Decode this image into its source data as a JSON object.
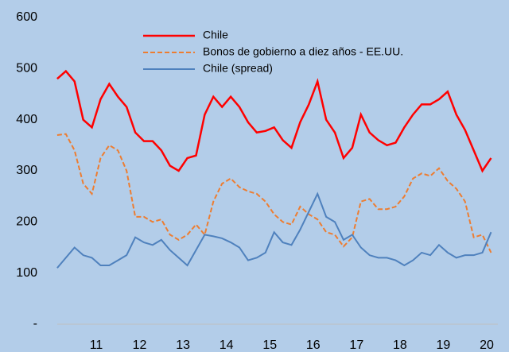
{
  "chart_data": {
    "type": "line",
    "x": [
      10.1,
      10.3,
      10.5,
      10.7,
      10.9,
      11.1,
      11.3,
      11.5,
      11.7,
      11.9,
      12.1,
      12.3,
      12.5,
      12.7,
      12.9,
      13.1,
      13.3,
      13.5,
      13.7,
      13.9,
      14.1,
      14.3,
      14.5,
      14.7,
      14.9,
      15.1,
      15.3,
      15.5,
      15.7,
      15.9,
      16.1,
      16.3,
      16.5,
      16.7,
      16.9,
      17.1,
      17.3,
      17.5,
      17.7,
      17.9,
      18.1,
      18.3,
      18.5,
      18.7,
      18.9,
      19.1,
      19.3,
      19.5,
      19.7,
      19.9,
      20.1
    ],
    "series": [
      {
        "name": "Chile",
        "color": "#ff0000",
        "dash": false,
        "values": [
          480,
          495,
          475,
          400,
          385,
          440,
          470,
          445,
          425,
          375,
          358,
          358,
          340,
          310,
          300,
          325,
          330,
          410,
          445,
          425,
          445,
          425,
          395,
          375,
          378,
          385,
          360,
          345,
          395,
          430,
          475,
          400,
          375,
          325,
          345,
          410,
          375,
          360,
          350,
          355,
          385,
          410,
          430,
          430,
          440,
          455,
          410,
          380,
          340,
          300,
          325
        ]
      },
      {
        "name": "Bonos de gobierno a diez años - EE.UU.",
        "color": "#ed7d31",
        "dash": true,
        "values": [
          370,
          372,
          340,
          275,
          255,
          325,
          350,
          340,
          300,
          210,
          210,
          200,
          205,
          175,
          165,
          175,
          195,
          175,
          240,
          275,
          285,
          268,
          260,
          255,
          240,
          215,
          200,
          195,
          230,
          215,
          205,
          180,
          175,
          152,
          170,
          240,
          245,
          225,
          225,
          230,
          250,
          285,
          295,
          290,
          305,
          280,
          265,
          240,
          170,
          175,
          140
        ]
      },
      {
        "name": "Chile (spread)",
        "color": "#4f81bd",
        "dash": false,
        "values": [
          110,
          130,
          150,
          135,
          130,
          115,
          115,
          125,
          135,
          170,
          160,
          155,
          165,
          145,
          130,
          115,
          145,
          175,
          172,
          168,
          160,
          150,
          125,
          130,
          140,
          180,
          160,
          155,
          185,
          220,
          255,
          210,
          200,
          165,
          175,
          150,
          135,
          130,
          130,
          125,
          115,
          125,
          140,
          135,
          155,
          140,
          130,
          135,
          135,
          140,
          180
        ]
      }
    ],
    "xlim": [
      10.1,
      20.2
    ],
    "xticks": [
      11,
      12,
      13,
      14,
      15,
      16,
      17,
      18,
      19,
      20
    ],
    "ylim": [
      0,
      600
    ],
    "yticks": [
      {
        "value": 0,
        "label": "-"
      },
      100,
      200,
      300,
      400,
      500,
      600
    ],
    "grid": false,
    "legend": "top"
  }
}
